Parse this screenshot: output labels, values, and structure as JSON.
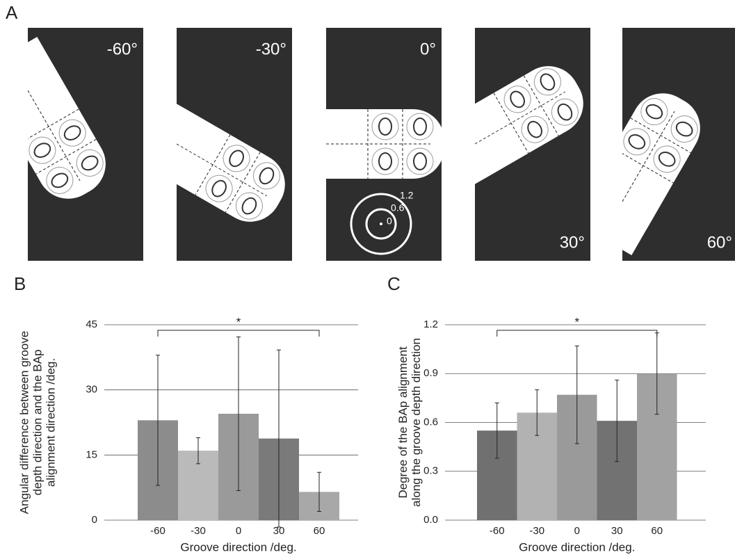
{
  "figure": {
    "panel_labels": [
      "A",
      "B",
      "C"
    ],
    "panel_a": {
      "angles": [
        "-60°",
        "-30°",
        "0°",
        "30°",
        "60°"
      ],
      "scale_labels": [
        "1.2",
        "0.6",
        "0"
      ]
    }
  },
  "chart_data": [
    {
      "type": "bar",
      "y_label": [
        "Angular difference between groove",
        "depth direction and the BAp",
        "alignment direction /deg."
      ],
      "x_label": "Groove direction  /deg.",
      "categories": [
        "-60",
        "-30",
        "0",
        "30",
        "60"
      ],
      "values": [
        23,
        16,
        24.5,
        18.8,
        6.5
      ],
      "errors": [
        15,
        3,
        17.7,
        20.4,
        4.5
      ],
      "colors": [
        "#8c8c8c",
        "#bababa",
        "#9a9a9a",
        "#7a7a7a",
        "#a8a8a8"
      ],
      "ylim": [
        0,
        45
      ],
      "yticks": [
        0,
        15,
        30,
        45
      ],
      "grid": true,
      "annotations": [
        "*"
      ]
    },
    {
      "type": "bar",
      "y_label": [
        "Degree of the BAp alignment",
        "along the groove depth direction"
      ],
      "x_label": "Groove direction  /deg.",
      "categories": [
        "-60",
        "-30",
        "0",
        "30",
        "60"
      ],
      "values": [
        0.55,
        0.66,
        0.77,
        0.61,
        0.9
      ],
      "errors": [
        0.17,
        0.14,
        0.3,
        0.25,
        0.25
      ],
      "colors": [
        "#707070",
        "#b2b2b2",
        "#9a9a9a",
        "#727272",
        "#a2a2a2"
      ],
      "ylim": [
        0,
        1.2
      ],
      "yticks": [
        {
          "value": 0,
          "label": "0.0"
        },
        0.3,
        0.6,
        0.9,
        1.2
      ],
      "grid": true,
      "annotations": [
        "*"
      ]
    }
  ]
}
